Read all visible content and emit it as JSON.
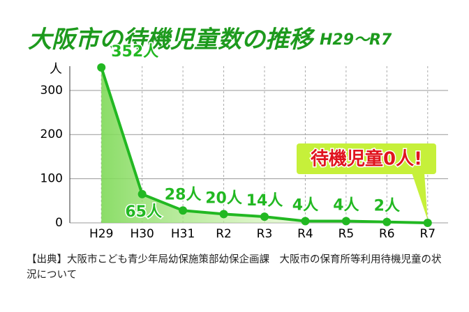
{
  "chart_data": {
    "type": "line",
    "title": "大阪市の待機児童数の推移",
    "subtitle": "H29〜R7",
    "y_label": "人",
    "categories": [
      "H29",
      "H30",
      "H31",
      "R2",
      "R3",
      "R4",
      "R5",
      "R6",
      "R7"
    ],
    "values": [
      352,
      65,
      28,
      20,
      14,
      4,
      4,
      2,
      0
    ],
    "value_labels": [
      "352人",
      "65人",
      "28人",
      "20人",
      "14人",
      "4人",
      "4人",
      "2人",
      null
    ],
    "color": "#22b822",
    "ylim": [
      0,
      355
    ],
    "yticks": [
      0,
      100,
      200,
      300
    ],
    "grid": true,
    "annotation": "待機児童0人!",
    "source": "【出典】大阪市こども青少年局幼保施策部幼保企画課　大阪市の保育所等利用待機児童の状況について"
  }
}
